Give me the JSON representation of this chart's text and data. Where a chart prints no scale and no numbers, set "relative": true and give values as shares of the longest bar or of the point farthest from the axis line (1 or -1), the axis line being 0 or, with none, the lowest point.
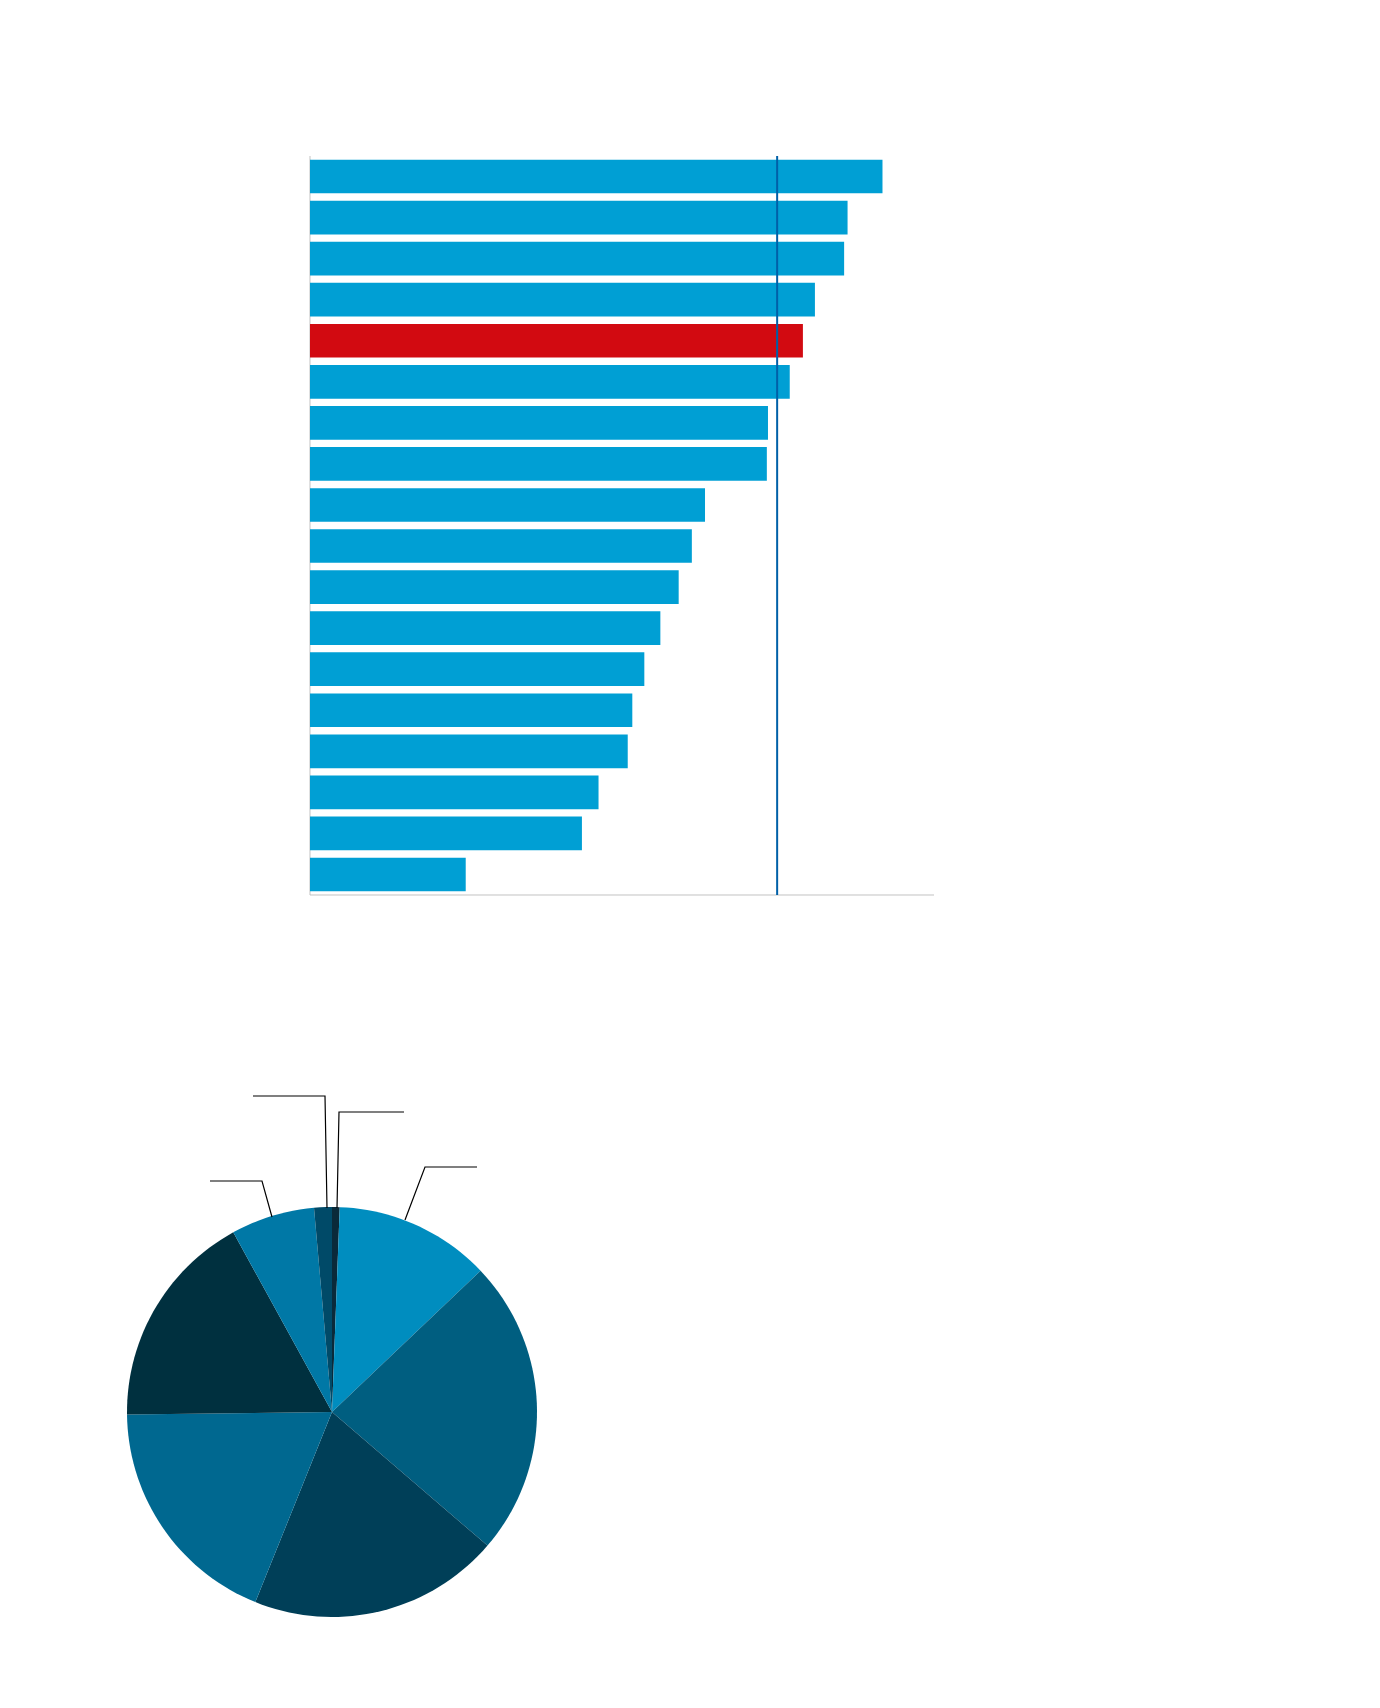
{
  "chart_data": [
    {
      "type": "bar",
      "orientation": "horizontal",
      "relative": true,
      "categories": [
        null,
        null,
        null,
        null,
        null,
        null,
        null,
        null,
        null,
        null,
        null,
        null,
        null,
        null,
        null,
        null,
        null,
        null
      ],
      "values": [
        1,
        0.939,
        0.933,
        0.882,
        0.861,
        0.838,
        0.8,
        0.798,
        0.69,
        0.667,
        0.644,
        0.612,
        0.584,
        0.563,
        0.555,
        0.504,
        0.475,
        0.272
      ],
      "colors": [
        "#009fd4",
        "#009fd4",
        "#009fd4",
        "#009fd4",
        "#d20a11",
        "#009fd4",
        "#009fd4",
        "#009fd4",
        "#009fd4",
        "#009fd4",
        "#009fd4",
        "#009fd4",
        "#009fd4",
        "#009fd4",
        "#009fd4",
        "#009fd4",
        "#009fd4",
        "#009fd4"
      ],
      "ref_lines": [
        {
          "axis": "x",
          "value": 0.816,
          "color": "#0060a8"
        }
      ]
    },
    {
      "type": "pie",
      "categories": [
        null,
        null,
        null,
        null,
        null,
        null,
        null,
        null
      ],
      "values": [
        0.6,
        12.3,
        23.4,
        19.8,
        18.7,
        17.2,
        6.6,
        1.4
      ],
      "colors": [
        "#0a2a3a",
        "#008dbf",
        "#005e80",
        "#003f58",
        "#006890",
        "#00303f",
        "#0078a6",
        "#004a68"
      ]
    }
  ]
}
